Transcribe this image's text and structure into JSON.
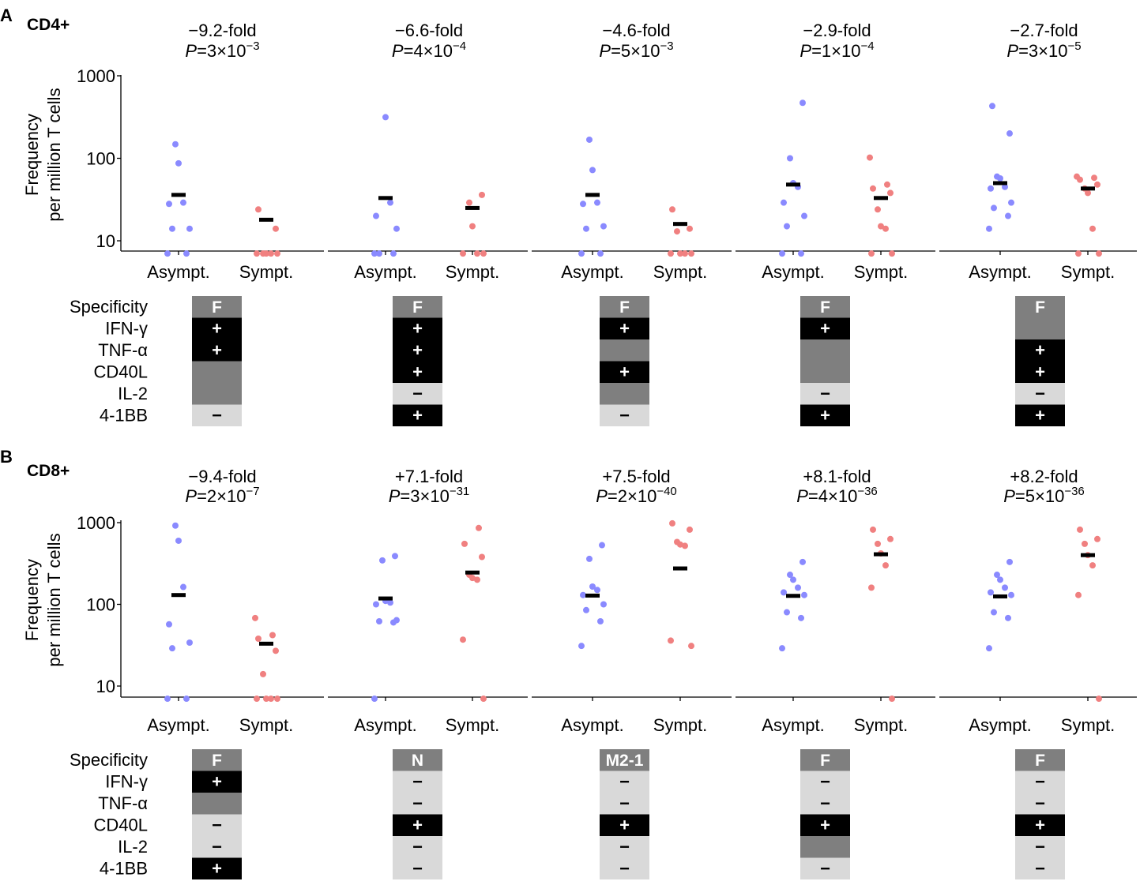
{
  "colors": {
    "asymptomatic": "#8a8aff",
    "symptomatic": "#f08080",
    "median": "#000000",
    "cell_positive": "#000000",
    "cell_unchanged": "#7f7f7f",
    "cell_negative": "#d9d9d9",
    "cell_specificity": "#7f7f7f",
    "cell_text": "#ffffff"
  },
  "row_labels": [
    "Specificity",
    "IFN-γ",
    "TNF-α",
    "CD40L",
    "IL-2",
    "4-1BB"
  ],
  "chart_data": [
    {
      "panel_letter": "A",
      "panel_title": "CD4+",
      "type": "scatter",
      "ylabel_line1": "Frequency",
      "ylabel_line2": "per million T cells",
      "yscale": "log",
      "ylim": [
        7,
        1000
      ],
      "yticks": [
        {
          "value": 10,
          "label": "10"
        },
        {
          "value": 100,
          "label": "100"
        },
        {
          "value": 1000,
          "label": "1000"
        }
      ],
      "categories": [
        "Asympt.",
        "Sympt."
      ],
      "subplots": [
        {
          "fold": "−9.2-fold",
          "p_label": "P",
          "p_eq": "=3×10",
          "p_exp": "−3",
          "asympt_points": [
            7,
            7,
            14,
            14,
            28,
            29,
            87,
            148
          ],
          "asympt_median": 36,
          "sympt_points": [
            7,
            7,
            7,
            7,
            7,
            14,
            24
          ],
          "sympt_median": 18,
          "specificity": "F",
          "markers": [
            "+",
            "+",
            "0",
            "0",
            "−"
          ]
        },
        {
          "fold": "−6.6-fold",
          "p_label": "P",
          "p_eq": "=4×10",
          "p_exp": "−4",
          "asympt_points": [
            7,
            7,
            7,
            14,
            20,
            29,
            315
          ],
          "asympt_median": 33,
          "sympt_points": [
            7,
            7,
            7,
            15,
            29,
            36
          ],
          "sympt_median": 25,
          "specificity": "F",
          "markers": [
            "+",
            "+",
            "+",
            "−",
            "+"
          ]
        },
        {
          "fold": "−4.6-fold",
          "p_label": "P",
          "p_eq": "=5×10",
          "p_exp": "−3",
          "asympt_points": [
            7,
            7,
            14,
            15,
            28,
            29,
            72,
            168
          ],
          "asympt_median": 36,
          "sympt_points": [
            7,
            7,
            7,
            7,
            13,
            14,
            24
          ],
          "sympt_median": 16,
          "specificity": "F",
          "markers": [
            "+",
            "0",
            "+",
            "0",
            "−"
          ]
        },
        {
          "fold": "−2.9-fold",
          "p_label": "P",
          "p_eq": "=1×10",
          "p_exp": "−4",
          "asympt_points": [
            7,
            7,
            15,
            20,
            29,
            45,
            50,
            100,
            470
          ],
          "asympt_median": 48,
          "sympt_points": [
            7,
            7,
            14,
            15,
            24,
            38,
            43,
            48,
            102
          ],
          "sympt_median": 33,
          "specificity": "F",
          "markers": [
            "+",
            "0",
            "0",
            "−",
            "+"
          ]
        },
        {
          "fold": "−2.7-fold",
          "p_label": "P",
          "p_eq": "=3×10",
          "p_exp": "−5",
          "asympt_points": [
            14,
            20,
            25,
            29,
            43,
            45,
            57,
            60,
            200,
            430
          ],
          "asympt_median": 50,
          "sympt_points": [
            7,
            7,
            14,
            38,
            43,
            48,
            55,
            58,
            60
          ],
          "sympt_median": 43,
          "specificity": "F",
          "markers": [
            "0",
            "+",
            "+",
            "−",
            "+"
          ]
        }
      ]
    },
    {
      "panel_letter": "B",
      "panel_title": "CD8+",
      "type": "scatter",
      "ylabel_line1": "Frequency",
      "ylabel_line2": "per million T cells",
      "yscale": "log",
      "ylim": [
        7,
        1000
      ],
      "yticks": [
        {
          "value": 10,
          "label": "10"
        },
        {
          "value": 100,
          "label": "100"
        },
        {
          "value": 1000,
          "label": "1000"
        }
      ],
      "categories": [
        "Asympt.",
        "Sympt."
      ],
      "subplots": [
        {
          "fold": "−9.4-fold",
          "p_label": "P",
          "p_eq": "=2×10",
          "p_exp": "−7",
          "asympt_points": [
            7,
            7,
            29,
            34,
            57,
            163,
            600,
            920
          ],
          "asympt_median": 130,
          "sympt_points": [
            7,
            7,
            7,
            7,
            14,
            27,
            38,
            42,
            68
          ],
          "sympt_median": 33,
          "specificity": "F",
          "markers": [
            "+",
            "0",
            "−",
            "−",
            "+"
          ]
        },
        {
          "fold": "+7.1-fold",
          "p_label": "P",
          "p_eq": "=3×10",
          "p_exp": "−31",
          "asympt_points": [
            7,
            60,
            62,
            64,
            100,
            105,
            110,
            345,
            390
          ],
          "asympt_median": 118,
          "sympt_points": [
            7,
            37,
            200,
            210,
            230,
            380,
            550,
            860
          ],
          "sympt_median": 245,
          "specificity": "N",
          "markers": [
            "−",
            "−",
            "+",
            "−",
            "−"
          ]
        },
        {
          "fold": "+7.5-fold",
          "p_label": "P",
          "p_eq": "=2×10",
          "p_exp": "−40",
          "asympt_points": [
            31,
            62,
            85,
            100,
            130,
            150,
            165,
            360,
            530
          ],
          "asympt_median": 128,
          "sympt_points": [
            31,
            36,
            520,
            540,
            580,
            820,
            980
          ],
          "sympt_median": 275,
          "specificity": "M2-1",
          "markers": [
            "−",
            "−",
            "+",
            "−",
            "−"
          ]
        },
        {
          "fold": "+8.1-fold",
          "p_label": "P",
          "p_eq": "=4×10",
          "p_exp": "−36",
          "asympt_points": [
            29,
            68,
            80,
            130,
            140,
            160,
            200,
            230,
            330
          ],
          "asympt_median": 127,
          "sympt_points": [
            7,
            160,
            300,
            420,
            550,
            630,
            820
          ],
          "sympt_median": 410,
          "specificity": "F",
          "markers": [
            "−",
            "−",
            "+",
            "0",
            "−"
          ]
        },
        {
          "fold": "+8.2-fold",
          "p_label": "P",
          "p_eq": "=5×10",
          "p_exp": "−36",
          "asympt_points": [
            29,
            68,
            80,
            130,
            140,
            160,
            200,
            230,
            330
          ],
          "asympt_median": 125,
          "sympt_points": [
            7,
            130,
            300,
            400,
            550,
            630,
            820
          ],
          "sympt_median": 400,
          "specificity": "F",
          "markers": [
            "−",
            "−",
            "+",
            "−",
            "−"
          ]
        }
      ]
    }
  ]
}
